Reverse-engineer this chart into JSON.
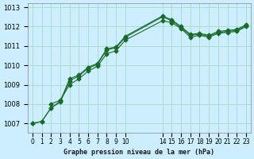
{
  "title": "Graphe pression niveau de la mer (hPa)",
  "bg_color": "#cceeff",
  "grid_color": "#aaddcc",
  "line_color": "#1a6b2a",
  "x_ticks": [
    0,
    1,
    2,
    3,
    4,
    5,
    6,
    7,
    8,
    9,
    10,
    14,
    15,
    16,
    17,
    18,
    19,
    20,
    21,
    22,
    23
  ],
  "ylim": [
    1006.5,
    1013.2
  ],
  "yticks": [
    1007,
    1008,
    1009,
    1010,
    1011,
    1012,
    1013
  ],
  "series": [
    [
      0,
      1007.0
    ],
    [
      1,
      1007.1
    ],
    [
      2,
      1007.8
    ],
    [
      3,
      1008.1
    ],
    [
      3,
      1008.2
    ],
    [
      4,
      1009.3
    ],
    [
      5,
      1009.5
    ],
    [
      6,
      1009.9
    ],
    [
      7,
      1010.1
    ],
    [
      8,
      1010.9
    ],
    [
      9,
      1011.0
    ],
    [
      10,
      1011.5
    ],
    [
      14,
      1012.55
    ],
    [
      15,
      1012.35
    ],
    [
      15,
      1012.35
    ],
    [
      16,
      1012.0
    ],
    [
      17,
      1011.6
    ],
    [
      17,
      1011.6
    ],
    [
      18,
      1011.7
    ],
    [
      19,
      1011.55
    ],
    [
      19,
      1011.55
    ],
    [
      20,
      1011.75
    ],
    [
      21,
      1011.8
    ],
    [
      22,
      1011.85
    ],
    [
      23,
      1012.1
    ]
  ],
  "line1_x": [
    0,
    1,
    2,
    3,
    4,
    5,
    6,
    7,
    8,
    9,
    10,
    14,
    15,
    16,
    17,
    18,
    19,
    20,
    21,
    22,
    23
  ],
  "line1_y": [
    1007.0,
    1007.1,
    1007.8,
    1008.15,
    1009.3,
    1009.5,
    1009.9,
    1010.1,
    1010.85,
    1010.95,
    1011.5,
    1012.55,
    1012.35,
    1012.0,
    1011.6,
    1011.65,
    1011.55,
    1011.75,
    1011.8,
    1011.85,
    1012.1
  ],
  "line2_x": [
    0,
    1,
    2,
    3,
    4,
    5,
    6,
    7,
    8,
    9,
    10,
    14,
    15,
    16,
    17,
    18,
    19,
    20,
    21,
    22,
    23
  ],
  "line2_y": [
    1007.0,
    1007.1,
    1007.8,
    1008.1,
    1009.2,
    1009.45,
    1009.85,
    1010.05,
    1010.8,
    1010.9,
    1011.45,
    1012.5,
    1012.3,
    1011.95,
    1011.55,
    1011.6,
    1011.5,
    1011.7,
    1011.75,
    1011.8,
    1012.05
  ],
  "line3_x": [
    2,
    3,
    4,
    5,
    6,
    7,
    8,
    9,
    10,
    14,
    15,
    16,
    17,
    18,
    19,
    20,
    21,
    22,
    23
  ],
  "line3_y": [
    1008.0,
    1008.2,
    1009.0,
    1009.3,
    1009.7,
    1009.95,
    1010.6,
    1010.75,
    1011.3,
    1012.3,
    1012.2,
    1011.9,
    1011.45,
    1011.55,
    1011.45,
    1011.65,
    1011.7,
    1011.75,
    1012.0
  ]
}
